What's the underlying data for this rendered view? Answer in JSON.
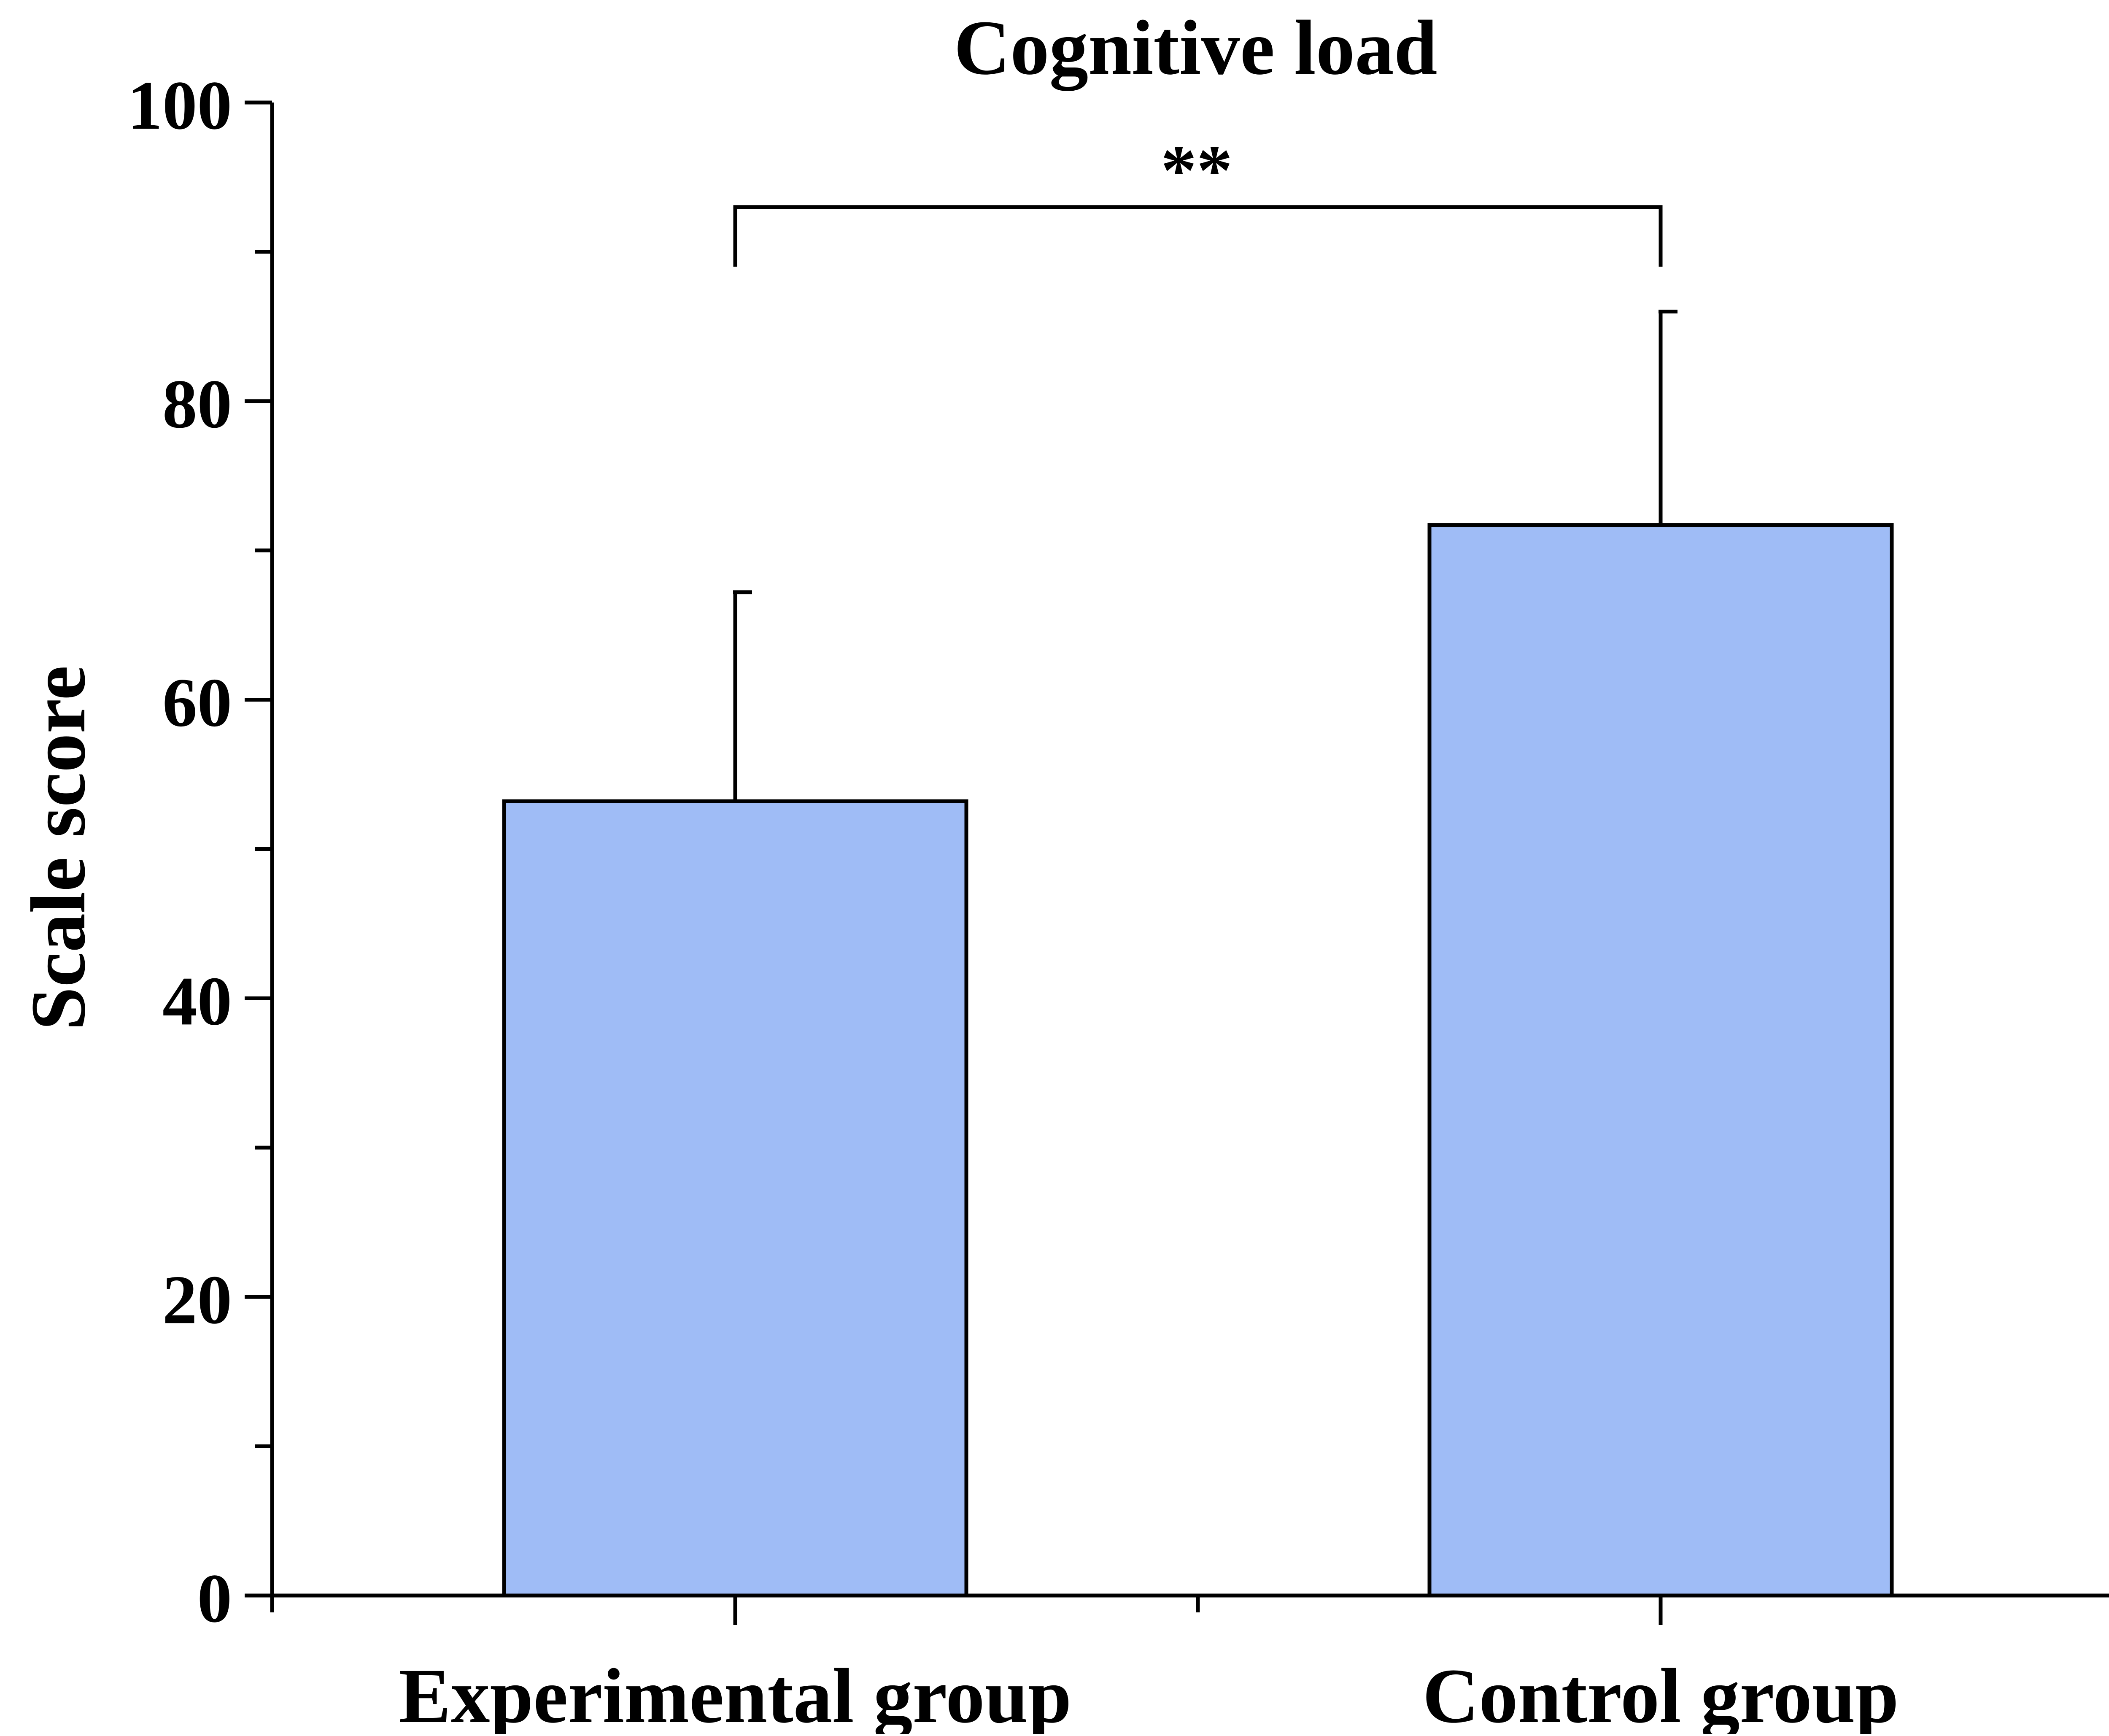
{
  "chart_data": {
    "type": "bar",
    "title": "Cognitive load",
    "xlabel": "",
    "ylabel": "Scale score",
    "categories": [
      "Experimental group",
      "Control group"
    ],
    "values": [
      53.2,
      71.7
    ],
    "error_upper": [
      67.2,
      86.0
    ],
    "ylim": [
      0,
      100
    ],
    "yticks": [
      0,
      20,
      40,
      60,
      80,
      100
    ],
    "ytick_labels": [
      "0",
      "20",
      "40",
      "60",
      "80",
      "100"
    ],
    "significance": {
      "label": "**",
      "between": [
        "Experimental group",
        "Control group"
      ],
      "bracket_y": 93,
      "bracket_drop_to": 89
    },
    "grid": false,
    "legend": "none",
    "colors": {
      "bar_fill": "#9FBCF6",
      "bar_stroke": "#000000",
      "axis": "#000000"
    }
  }
}
